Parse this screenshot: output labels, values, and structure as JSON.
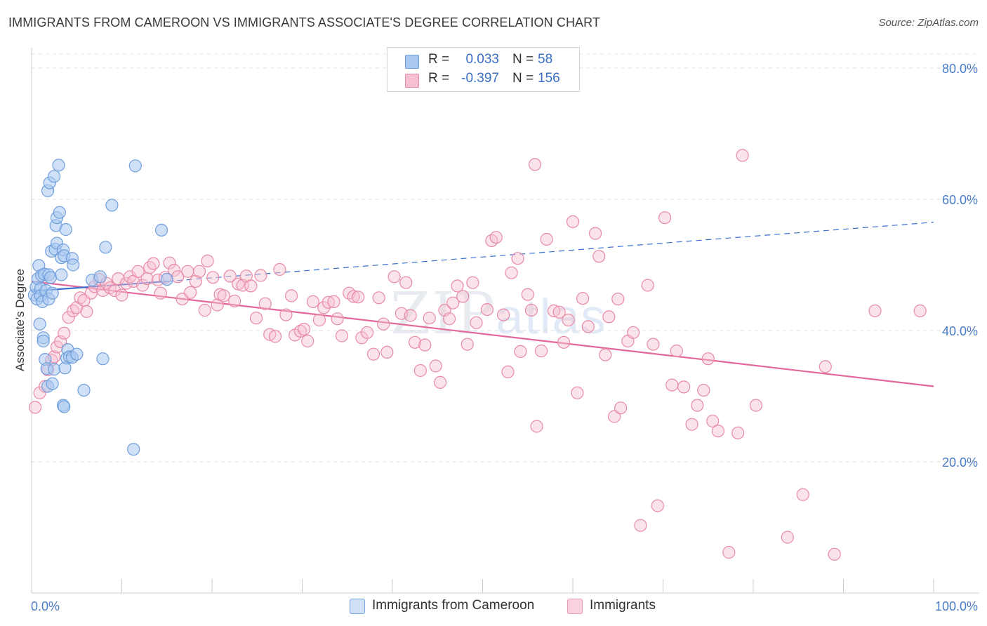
{
  "title": "IMMIGRANTS FROM CAMEROON VS IMMIGRANTS ASSOCIATE'S DEGREE CORRELATION CHART",
  "source": "Source: ZipAtlas.com",
  "watermark": {
    "zip": "ZIP",
    "atlas": "atlas"
  },
  "legend": {
    "rows": [
      {
        "r_label": "R =",
        "r_value": "0.033",
        "n_label": "N =",
        "n_value": "58",
        "color": "#a9c8f0",
        "border": "#6f9fdc"
      },
      {
        "r_label": "R =",
        "r_value": "-0.397",
        "n_label": "N =",
        "n_value": "156",
        "color": "#f7c0d0",
        "border": "#e88aa8"
      }
    ]
  },
  "bottom_legend": [
    {
      "label": "Immigrants from Cameroon",
      "color": "#cfe0f7",
      "border": "#7aa6e0"
    },
    {
      "label": "Immigrants",
      "color": "#fad2df",
      "border": "#eb9ab5"
    }
  ],
  "chart_data": {
    "type": "scatter",
    "title": "IMMIGRANTS FROM CAMEROON VS IMMIGRANTS ASSOCIATE'S DEGREE CORRELATION CHART",
    "xlabel": "",
    "ylabel": "Associate's Degree",
    "xlim": [
      0,
      100
    ],
    "ylim": [
      0,
      85
    ],
    "x_ticks": [
      "0.0%",
      "100.0%"
    ],
    "y_ticks": [
      {
        "value": 20,
        "label": "20.0%"
      },
      {
        "value": 40,
        "label": "40.0%"
      },
      {
        "value": 60,
        "label": "60.0%"
      },
      {
        "value": 80,
        "label": "80.0%"
      }
    ],
    "grid": "horizontal dashed",
    "series": [
      {
        "name": "Immigrants from Cameroon",
        "color": "#a9c8f0",
        "stroke": "#6f9fdc",
        "trend": {
          "x1": 0,
          "y1": 46.0,
          "x2": 15,
          "y2": 47.5,
          "dashed_to_x": 100,
          "dashed_to_y": 56.5,
          "color": "#3b6fd0"
        },
        "points": [
          [
            0.3,
            45.4
          ],
          [
            0.5,
            46.6
          ],
          [
            0.6,
            44.8
          ],
          [
            0.7,
            47.9
          ],
          [
            0.8,
            49.9
          ],
          [
            0.9,
            41.0
          ],
          [
            1.0,
            46.4
          ],
          [
            1.0,
            45.3
          ],
          [
            1.1,
            48.4
          ],
          [
            1.2,
            44.4
          ],
          [
            1.3,
            38.9
          ],
          [
            1.3,
            38.4
          ],
          [
            1.4,
            48.6
          ],
          [
            1.5,
            35.6
          ],
          [
            1.6,
            46.1
          ],
          [
            1.7,
            34.2
          ],
          [
            1.8,
            61.3
          ],
          [
            1.8,
            31.5
          ],
          [
            1.9,
            48.5
          ],
          [
            1.9,
            44.8
          ],
          [
            2.0,
            62.5
          ],
          [
            2.1,
            48.1
          ],
          [
            2.2,
            52.1
          ],
          [
            2.3,
            45.7
          ],
          [
            2.3,
            31.9
          ],
          [
            2.5,
            63.5
          ],
          [
            2.5,
            34.1
          ],
          [
            2.6,
            52.4
          ],
          [
            2.7,
            56.0
          ],
          [
            2.8,
            57.2
          ],
          [
            2.8,
            53.3
          ],
          [
            3.0,
            65.2
          ],
          [
            3.1,
            58.0
          ],
          [
            3.3,
            48.5
          ],
          [
            3.3,
            51.1
          ],
          [
            3.5,
            52.3
          ],
          [
            3.6,
            51.4
          ],
          [
            3.5,
            28.6
          ],
          [
            3.6,
            28.4
          ],
          [
            3.7,
            34.3
          ],
          [
            3.8,
            55.4
          ],
          [
            3.9,
            35.8
          ],
          [
            4.0,
            37.1
          ],
          [
            4.2,
            36.0
          ],
          [
            4.5,
            35.9
          ],
          [
            4.5,
            51.0
          ],
          [
            4.6,
            50.0
          ],
          [
            5.0,
            36.4
          ],
          [
            5.8,
            30.9
          ],
          [
            6.7,
            47.7
          ],
          [
            7.9,
            35.7
          ],
          [
            8.2,
            52.7
          ],
          [
            8.9,
            59.1
          ],
          [
            11.5,
            65.1
          ],
          [
            11.3,
            21.9
          ],
          [
            14.4,
            55.3
          ],
          [
            15.0,
            47.8
          ],
          [
            7.6,
            48.2
          ]
        ]
      },
      {
        "name": "Immigrants",
        "color": "#f7c0d0",
        "stroke": "#e88aa8",
        "trend": {
          "x1": 0,
          "y1": 47.5,
          "x2": 100,
          "y2": 31.5,
          "color": "#e2679a"
        },
        "points": [
          [
            0.4,
            28.3
          ],
          [
            0.9,
            30.5
          ],
          [
            1.5,
            31.5
          ],
          [
            1.8,
            34.0
          ],
          [
            2.2,
            35.5
          ],
          [
            2.5,
            36.0
          ],
          [
            2.8,
            37.5
          ],
          [
            3.2,
            38.3
          ],
          [
            3.6,
            39.6
          ],
          [
            4.1,
            42.0
          ],
          [
            4.6,
            43.0
          ],
          [
            5.0,
            43.5
          ],
          [
            5.4,
            45.0
          ],
          [
            5.8,
            44.6
          ],
          [
            6.1,
            42.9
          ],
          [
            6.6,
            45.7
          ],
          [
            7.0,
            46.7
          ],
          [
            7.5,
            47.8
          ],
          [
            7.9,
            46.1
          ],
          [
            8.3,
            47.2
          ],
          [
            8.7,
            46.5
          ],
          [
            9.2,
            46.1
          ],
          [
            9.6,
            47.9
          ],
          [
            10.0,
            45.4
          ],
          [
            10.5,
            47.2
          ],
          [
            10.9,
            48.2
          ],
          [
            11.3,
            47.5
          ],
          [
            11.8,
            49.0
          ],
          [
            12.3,
            46.9
          ],
          [
            12.8,
            47.9
          ],
          [
            13.1,
            49.6
          ],
          [
            13.5,
            50.2
          ],
          [
            14.0,
            47.7
          ],
          [
            14.3,
            45.7
          ],
          [
            14.8,
            48.1
          ],
          [
            15.3,
            50.3
          ],
          [
            15.8,
            49.2
          ],
          [
            16.2,
            48.2
          ],
          [
            16.7,
            44.8
          ],
          [
            17.3,
            49.0
          ],
          [
            17.6,
            45.8
          ],
          [
            18.2,
            47.5
          ],
          [
            18.6,
            49.0
          ],
          [
            19.2,
            43.1
          ],
          [
            19.5,
            50.6
          ],
          [
            20.1,
            48.1
          ],
          [
            20.6,
            43.9
          ],
          [
            20.9,
            45.5
          ],
          [
            21.3,
            45.3
          ],
          [
            22.0,
            48.3
          ],
          [
            22.5,
            44.5
          ],
          [
            22.9,
            47.1
          ],
          [
            23.4,
            46.9
          ],
          [
            23.8,
            48.3
          ],
          [
            24.3,
            46.8
          ],
          [
            24.9,
            41.9
          ],
          [
            25.4,
            48.4
          ],
          [
            25.9,
            44.1
          ],
          [
            26.4,
            39.4
          ],
          [
            27.0,
            39.1
          ],
          [
            27.5,
            49.3
          ],
          [
            28.2,
            42.4
          ],
          [
            28.8,
            45.3
          ],
          [
            29.2,
            39.3
          ],
          [
            29.8,
            39.9
          ],
          [
            30.2,
            40.2
          ],
          [
            30.6,
            38.4
          ],
          [
            31.2,
            44.4
          ],
          [
            31.9,
            41.6
          ],
          [
            32.4,
            43.5
          ],
          [
            32.9,
            44.3
          ],
          [
            33.5,
            44.4
          ],
          [
            33.9,
            41.8
          ],
          [
            34.4,
            39.2
          ],
          [
            35.2,
            45.7
          ],
          [
            35.7,
            45.2
          ],
          [
            36.2,
            45.1
          ],
          [
            36.6,
            38.9
          ],
          [
            37.2,
            39.7
          ],
          [
            37.9,
            36.4
          ],
          [
            38.5,
            45.0
          ],
          [
            39.0,
            41.0
          ],
          [
            39.4,
            36.7
          ],
          [
            40.2,
            48.2
          ],
          [
            41.0,
            42.6
          ],
          [
            41.5,
            47.3
          ],
          [
            42.0,
            42.3
          ],
          [
            42.5,
            38.2
          ],
          [
            43.1,
            33.9
          ],
          [
            43.6,
            37.8
          ],
          [
            44.1,
            41.9
          ],
          [
            44.8,
            34.6
          ],
          [
            45.3,
            32.1
          ],
          [
            45.8,
            43.1
          ],
          [
            46.3,
            41.8
          ],
          [
            46.7,
            44.2
          ],
          [
            47.2,
            46.8
          ],
          [
            47.8,
            45.2
          ],
          [
            48.3,
            37.9
          ],
          [
            48.9,
            47.3
          ],
          [
            49.3,
            41.2
          ],
          [
            50.5,
            43.2
          ],
          [
            51.0,
            53.7
          ],
          [
            51.5,
            54.2
          ],
          [
            52.3,
            42.4
          ],
          [
            52.8,
            33.7
          ],
          [
            53.2,
            48.8
          ],
          [
            53.9,
            51.0
          ],
          [
            54.2,
            36.8
          ],
          [
            55.0,
            45.5
          ],
          [
            55.4,
            43.1
          ],
          [
            56.0,
            25.4
          ],
          [
            56.5,
            36.9
          ],
          [
            57.1,
            53.9
          ],
          [
            57.9,
            43.0
          ],
          [
            58.5,
            42.8
          ],
          [
            59.0,
            38.2
          ],
          [
            59.5,
            41.6
          ],
          [
            60.0,
            56.6
          ],
          [
            60.5,
            30.5
          ],
          [
            61.1,
            44.9
          ],
          [
            61.7,
            40.6
          ],
          [
            62.5,
            54.8
          ],
          [
            62.9,
            51.3
          ],
          [
            63.6,
            36.3
          ],
          [
            64.0,
            42.1
          ],
          [
            64.6,
            26.9
          ],
          [
            65.0,
            44.8
          ],
          [
            65.3,
            28.2
          ],
          [
            66.1,
            38.4
          ],
          [
            66.7,
            39.7
          ],
          [
            67.5,
            10.3
          ],
          [
            68.3,
            46.9
          ],
          [
            68.9,
            37.9
          ],
          [
            69.4,
            13.3
          ],
          [
            70.2,
            57.2
          ],
          [
            71.0,
            31.7
          ],
          [
            71.5,
            36.9
          ],
          [
            72.3,
            31.4
          ],
          [
            73.2,
            25.7
          ],
          [
            73.8,
            28.6
          ],
          [
            74.5,
            30.9
          ],
          [
            75.0,
            35.7
          ],
          [
            75.5,
            26.2
          ],
          [
            76.1,
            24.7
          ],
          [
            77.3,
            6.2
          ],
          [
            78.3,
            24.4
          ],
          [
            78.8,
            66.7
          ],
          [
            80.3,
            28.6
          ],
          [
            83.8,
            8.5
          ],
          [
            85.5,
            15.0
          ],
          [
            88.0,
            34.5
          ],
          [
            89.0,
            5.9
          ],
          [
            93.5,
            43.0
          ],
          [
            55.8,
            65.3
          ],
          [
            98.5,
            43.0
          ]
        ]
      }
    ]
  }
}
